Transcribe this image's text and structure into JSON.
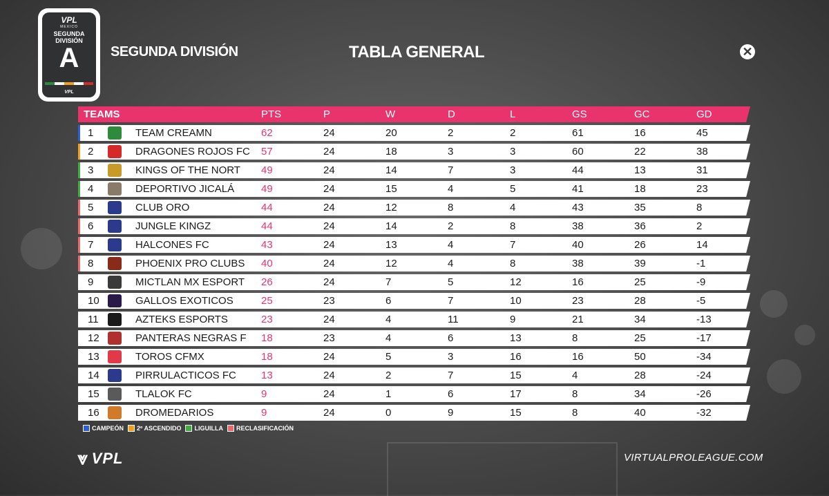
{
  "header": {
    "badge_logo": "VPL",
    "badge_sub": "MEXICO",
    "badge_division": "SEGUNDA DIVISIÓN",
    "badge_letter": "A",
    "badge_foot": "VPL",
    "subtitle": "SEGUNDA DIVISIÓN",
    "title": "TABLA GENERAL",
    "platform_icon": "xbox-icon"
  },
  "table": {
    "columns": [
      "TEAMS",
      "PTS",
      "P",
      "W",
      "D",
      "L",
      "GS",
      "GC",
      "GD"
    ],
    "rows": [
      {
        "pos": "1",
        "team": "TEAM CREAMN",
        "pts": "62",
        "p": "24",
        "w": "20",
        "d": "2",
        "l": "2",
        "gs": "61",
        "gc": "16",
        "gd": "45",
        "status": "campeon",
        "logo_color": "#2e8b3e"
      },
      {
        "pos": "2",
        "team": "DRAGONES ROJOS FC",
        "pts": "57",
        "p": "24",
        "w": "18",
        "d": "3",
        "l": "3",
        "gs": "60",
        "gc": "22",
        "gd": "38",
        "status": "ascendido",
        "logo_color": "#d42a2a"
      },
      {
        "pos": "3",
        "team": "KINGS OF THE NORT",
        "pts": "49",
        "p": "24",
        "w": "14",
        "d": "7",
        "l": "3",
        "gs": "44",
        "gc": "13",
        "gd": "31",
        "status": "liguilla",
        "logo_color": "#c89a2a"
      },
      {
        "pos": "4",
        "team": "DEPORTIVO JICALÁ",
        "pts": "49",
        "p": "24",
        "w": "15",
        "d": "4",
        "l": "5",
        "gs": "41",
        "gc": "18",
        "gd": "23",
        "status": "liguilla",
        "logo_color": "#8a7a6a"
      },
      {
        "pos": "5",
        "team": "CLUB ORO",
        "pts": "44",
        "p": "24",
        "w": "12",
        "d": "8",
        "l": "4",
        "gs": "43",
        "gc": "35",
        "gd": "8",
        "status": "reclasificacion",
        "logo_color": "#2b3a8c"
      },
      {
        "pos": "6",
        "team": "JUNGLE KINGZ",
        "pts": "44",
        "p": "24",
        "w": "14",
        "d": "2",
        "l": "8",
        "gs": "38",
        "gc": "36",
        "gd": "2",
        "status": "reclasificacion",
        "logo_color": "#2b3a8c"
      },
      {
        "pos": "7",
        "team": "HALCONES FC",
        "pts": "43",
        "p": "24",
        "w": "13",
        "d": "4",
        "l": "7",
        "gs": "40",
        "gc": "26",
        "gd": "14",
        "status": "reclasificacion",
        "logo_color": "#2b3a8c"
      },
      {
        "pos": "8",
        "team": "PHOENIX PRO CLUBS",
        "pts": "40",
        "p": "24",
        "w": "12",
        "d": "4",
        "l": "8",
        "gs": "38",
        "gc": "39",
        "gd": "-1",
        "status": "reclasificacion",
        "logo_color": "#8a2a1a"
      },
      {
        "pos": "9",
        "team": "MICTLAN MX ESPORT",
        "pts": "26",
        "p": "24",
        "w": "7",
        "d": "5",
        "l": "12",
        "gs": "16",
        "gc": "25",
        "gd": "-9",
        "status": "",
        "logo_color": "#3a3a3a"
      },
      {
        "pos": "10",
        "team": "GALLOS EXOTICOS",
        "pts": "25",
        "p": "23",
        "w": "6",
        "d": "7",
        "l": "10",
        "gs": "23",
        "gc": "28",
        "gd": "-5",
        "status": "",
        "logo_color": "#2a1a4a"
      },
      {
        "pos": "11",
        "team": "AZTEKS ESPORTS",
        "pts": "23",
        "p": "24",
        "w": "4",
        "d": "11",
        "l": "9",
        "gs": "21",
        "gc": "34",
        "gd": "-13",
        "status": "",
        "logo_color": "#1a1a1a"
      },
      {
        "pos": "12",
        "team": "PANTERAS NEGRAS F",
        "pts": "18",
        "p": "23",
        "w": "4",
        "d": "6",
        "l": "13",
        "gs": "8",
        "gc": "25",
        "gd": "-17",
        "status": "",
        "logo_color": "#b03030"
      },
      {
        "pos": "13",
        "team": "TOROS CFMX",
        "pts": "18",
        "p": "24",
        "w": "5",
        "d": "3",
        "l": "16",
        "gs": "16",
        "gc": "50",
        "gd": "-34",
        "status": "",
        "logo_color": "#e03a4a"
      },
      {
        "pos": "14",
        "team": "PIRRULACTICOS FC",
        "pts": "13",
        "p": "24",
        "w": "2",
        "d": "7",
        "l": "15",
        "gs": "4",
        "gc": "28",
        "gd": "-24",
        "status": "",
        "logo_color": "#2b3a8c"
      },
      {
        "pos": "15",
        "team": "TLALOK FC",
        "pts": "9",
        "p": "24",
        "w": "1",
        "d": "6",
        "l": "17",
        "gs": "8",
        "gc": "34",
        "gd": "-26",
        "status": "",
        "logo_color": "#5a5a5a"
      },
      {
        "pos": "16",
        "team": "DROMEDARIOS",
        "pts": "9",
        "p": "24",
        "w": "0",
        "d": "9",
        "l": "15",
        "gs": "8",
        "gc": "40",
        "gd": "-32",
        "status": "",
        "logo_color": "#d07a2a"
      }
    ]
  },
  "legend": [
    {
      "label": "CAMPEÓN",
      "color": "#2c5fd4"
    },
    {
      "label": "2º ASCENDIDO",
      "color": "#f0a020"
    },
    {
      "label": "LIGUILLA",
      "color": "#3fae3f"
    },
    {
      "label": "RECLASIFICACIÓN",
      "color": "#e86a6a"
    }
  ],
  "status_colors": {
    "campeon": "#2c5fd4",
    "ascendido": "#f0a020",
    "liguilla": "#3fae3f",
    "reclasificacion": "#e86a6a"
  },
  "footer": {
    "brand": "VPL",
    "website": "VIRTUALPROLEAGUE.COM"
  }
}
